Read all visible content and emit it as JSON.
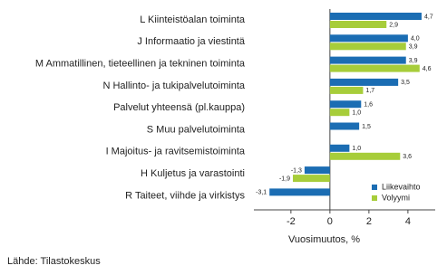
{
  "chart_data": {
    "type": "bar",
    "orientation": "horizontal",
    "categories": [
      "L Kiinteistöalan toiminta",
      "J Informaatio ja viestintä",
      "M Ammatillinen, tieteellinen ja tekninen toiminta",
      "N Hallinto- ja tukipalvelutoiminta",
      "Palvelut yhteensä (pl.kauppa)",
      "S Muu palvelutoiminta",
      "I Majoitus- ja ravitsemistoiminta",
      "H Kuljetus ja varastointi",
      "R Taiteet, viihde ja virkistys"
    ],
    "series": [
      {
        "name": "Liikevaihto",
        "color": "#1b6db3",
        "values": [
          4.7,
          4.0,
          3.9,
          3.5,
          1.6,
          1.5,
          1.0,
          -1.3,
          -3.1
        ],
        "value_labels": [
          "4,7",
          "4,0",
          "3,9",
          "3,5",
          "1,6",
          "1,5",
          "1,0",
          "-1,3",
          "-3,1"
        ]
      },
      {
        "name": "Volyymi",
        "color": "#a7cd3a",
        "values": [
          2.9,
          3.9,
          4.6,
          1.7,
          1.0,
          null,
          3.6,
          -1.9,
          null
        ],
        "value_labels": [
          "2,9",
          "3,9",
          "4,6",
          "1,7",
          "1,0",
          null,
          "3,6",
          "-1,9",
          null
        ]
      }
    ],
    "xlim": [
      -3.9,
      5.4
    ],
    "xticks": [
      -2,
      0,
      2,
      4
    ],
    "xlabel": "Vuosimuutos, %",
    "source": "Lähde: Tilastokeskus",
    "legend": "lower right"
  }
}
